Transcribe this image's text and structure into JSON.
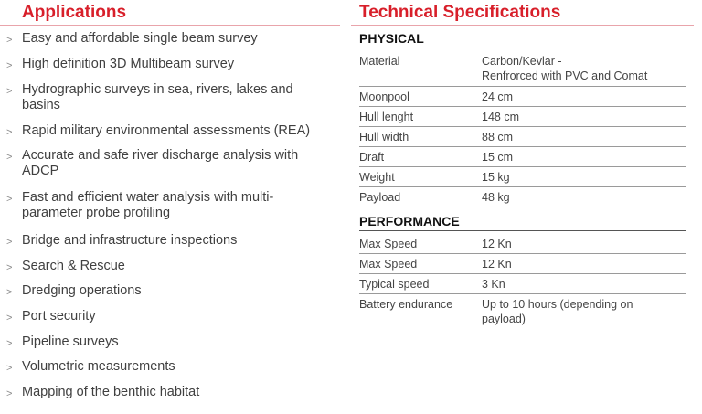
{
  "applications": {
    "title": "Applications",
    "items": [
      "Easy and affordable single beam survey",
      "High definition 3D Multibeam survey",
      "Hydrographic surveys in sea, rivers, lakes and basins",
      "Rapid military environmental assessments (REA)",
      "Accurate and safe river discharge analysis with ADCP",
      "Fast and efficient water analysis with multi-parameter probe profiling",
      "Bridge and infrastructure inspections",
      "Search & Rescue",
      "Dredging operations",
      "Port security",
      "Pipeline surveys",
      "Volumetric measurements",
      "Mapping of the benthic habitat"
    ],
    "bullet": ">"
  },
  "specs": {
    "title": "Technical Specifications",
    "physical": {
      "heading": "PHYSICAL",
      "rows": [
        {
          "key": "Material",
          "value": "Carbon/Kevlar -\nRenfrorced with PVC and Comat"
        },
        {
          "key": "Moonpool",
          "value": "24 cm"
        },
        {
          "key": "Hull lenght",
          "value": "148 cm"
        },
        {
          "key": "Hull width",
          "value": "88 cm"
        },
        {
          "key": "Draft",
          "value": "15 cm"
        },
        {
          "key": "Weight",
          "value": "15 kg"
        },
        {
          "key": "Payload",
          "value": "48 kg"
        }
      ]
    },
    "performance": {
      "heading": "PERFORMANCE",
      "rows": [
        {
          "key": "Max Speed",
          "value": "12 Kn"
        },
        {
          "key": "Max Speed",
          "value": "12 Kn"
        },
        {
          "key": "Typical speed",
          "value": "3 Kn"
        },
        {
          "key": "Battery endurance",
          "value": "Up to 10 hours (depending on\npayload)"
        }
      ]
    }
  }
}
